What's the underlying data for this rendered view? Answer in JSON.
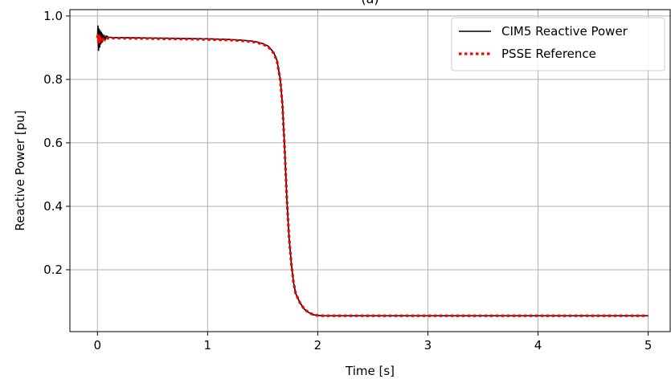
{
  "chart_data": {
    "type": "line",
    "title": "(a)",
    "xlabel": "Time [s]",
    "ylabel": "Reactive Power [pu]",
    "xlim": [
      -0.25,
      5.2
    ],
    "ylim": [
      0.005,
      1.02
    ],
    "x_ticks": [
      0,
      1,
      2,
      3,
      4,
      5
    ],
    "x_tick_labels": [
      "0",
      "1",
      "2",
      "3",
      "4",
      "5"
    ],
    "y_ticks": [
      0.2,
      0.4,
      0.6,
      0.8,
      1.0
    ],
    "y_tick_labels": [
      "0.2",
      "0.4",
      "0.6",
      "0.8",
      "1.0"
    ],
    "grid": true,
    "legend_position": "top-right",
    "series": [
      {
        "name": "CIM5 Reactive Power",
        "color": "#000000",
        "style": "solid",
        "x": [
          0,
          0.005,
          0.01,
          0.015,
          0.02,
          0.025,
          0.03,
          0.035,
          0.04,
          0.045,
          0.05,
          0.06,
          0.07,
          0.08,
          0.1,
          0.15,
          0.2,
          0.4,
          0.6,
          0.8,
          1.0,
          1.2,
          1.3,
          1.4,
          1.45,
          1.5,
          1.55,
          1.6,
          1.63,
          1.66,
          1.68,
          1.7,
          1.72,
          1.74,
          1.76,
          1.78,
          1.8,
          1.84,
          1.88,
          1.92,
          1.96,
          2.0,
          2.05,
          2.2,
          3.0,
          4.0,
          5.0
        ],
        "y": [
          0.93,
          0.97,
          0.89,
          0.96,
          0.9,
          0.955,
          0.91,
          0.95,
          0.915,
          0.945,
          0.92,
          0.94,
          0.925,
          0.937,
          0.933,
          0.932,
          0.932,
          0.931,
          0.93,
          0.929,
          0.928,
          0.926,
          0.924,
          0.921,
          0.918,
          0.913,
          0.905,
          0.885,
          0.86,
          0.8,
          0.72,
          0.58,
          0.42,
          0.3,
          0.22,
          0.16,
          0.125,
          0.095,
          0.075,
          0.065,
          0.058,
          0.056,
          0.055,
          0.055,
          0.055,
          0.055,
          0.055
        ]
      },
      {
        "name": "PSSE Reference",
        "color": "#ff0000",
        "style": "dotted",
        "x": [
          0,
          0.005,
          0.01,
          0.015,
          0.02,
          0.025,
          0.03,
          0.04,
          0.05,
          0.06,
          0.08,
          0.1,
          0.15,
          0.2,
          0.4,
          0.6,
          0.8,
          1.0,
          1.2,
          1.3,
          1.4,
          1.45,
          1.5,
          1.55,
          1.6,
          1.63,
          1.66,
          1.68,
          1.7,
          1.72,
          1.74,
          1.76,
          1.78,
          1.8,
          1.84,
          1.88,
          1.92,
          1.96,
          2.0,
          2.05,
          2.2,
          3.0,
          4.0,
          5.0
        ],
        "y": [
          0.93,
          0.945,
          0.91,
          0.94,
          0.915,
          0.935,
          0.92,
          0.933,
          0.925,
          0.931,
          0.929,
          0.93,
          0.93,
          0.93,
          0.929,
          0.928,
          0.927,
          0.926,
          0.924,
          0.922,
          0.919,
          0.916,
          0.911,
          0.903,
          0.883,
          0.858,
          0.798,
          0.718,
          0.578,
          0.42,
          0.3,
          0.22,
          0.16,
          0.125,
          0.095,
          0.075,
          0.065,
          0.058,
          0.056,
          0.055,
          0.055,
          0.055,
          0.055,
          0.055
        ]
      }
    ]
  }
}
